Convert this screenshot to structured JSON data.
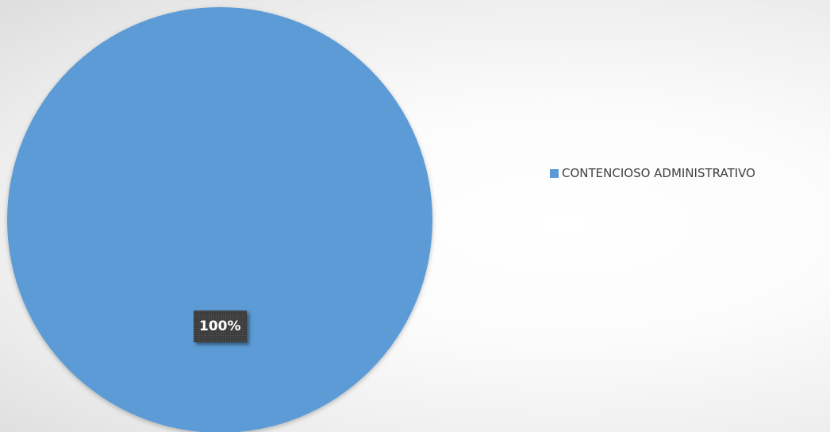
{
  "chart_data": {
    "type": "pie",
    "title": "",
    "categories": [
      "CONTENCIOSO ADMINISTRATIVO"
    ],
    "values": [
      100
    ],
    "data_labels": [
      "100%"
    ],
    "colors": [
      "#5b9bd5"
    ],
    "legend_position": "right"
  }
}
